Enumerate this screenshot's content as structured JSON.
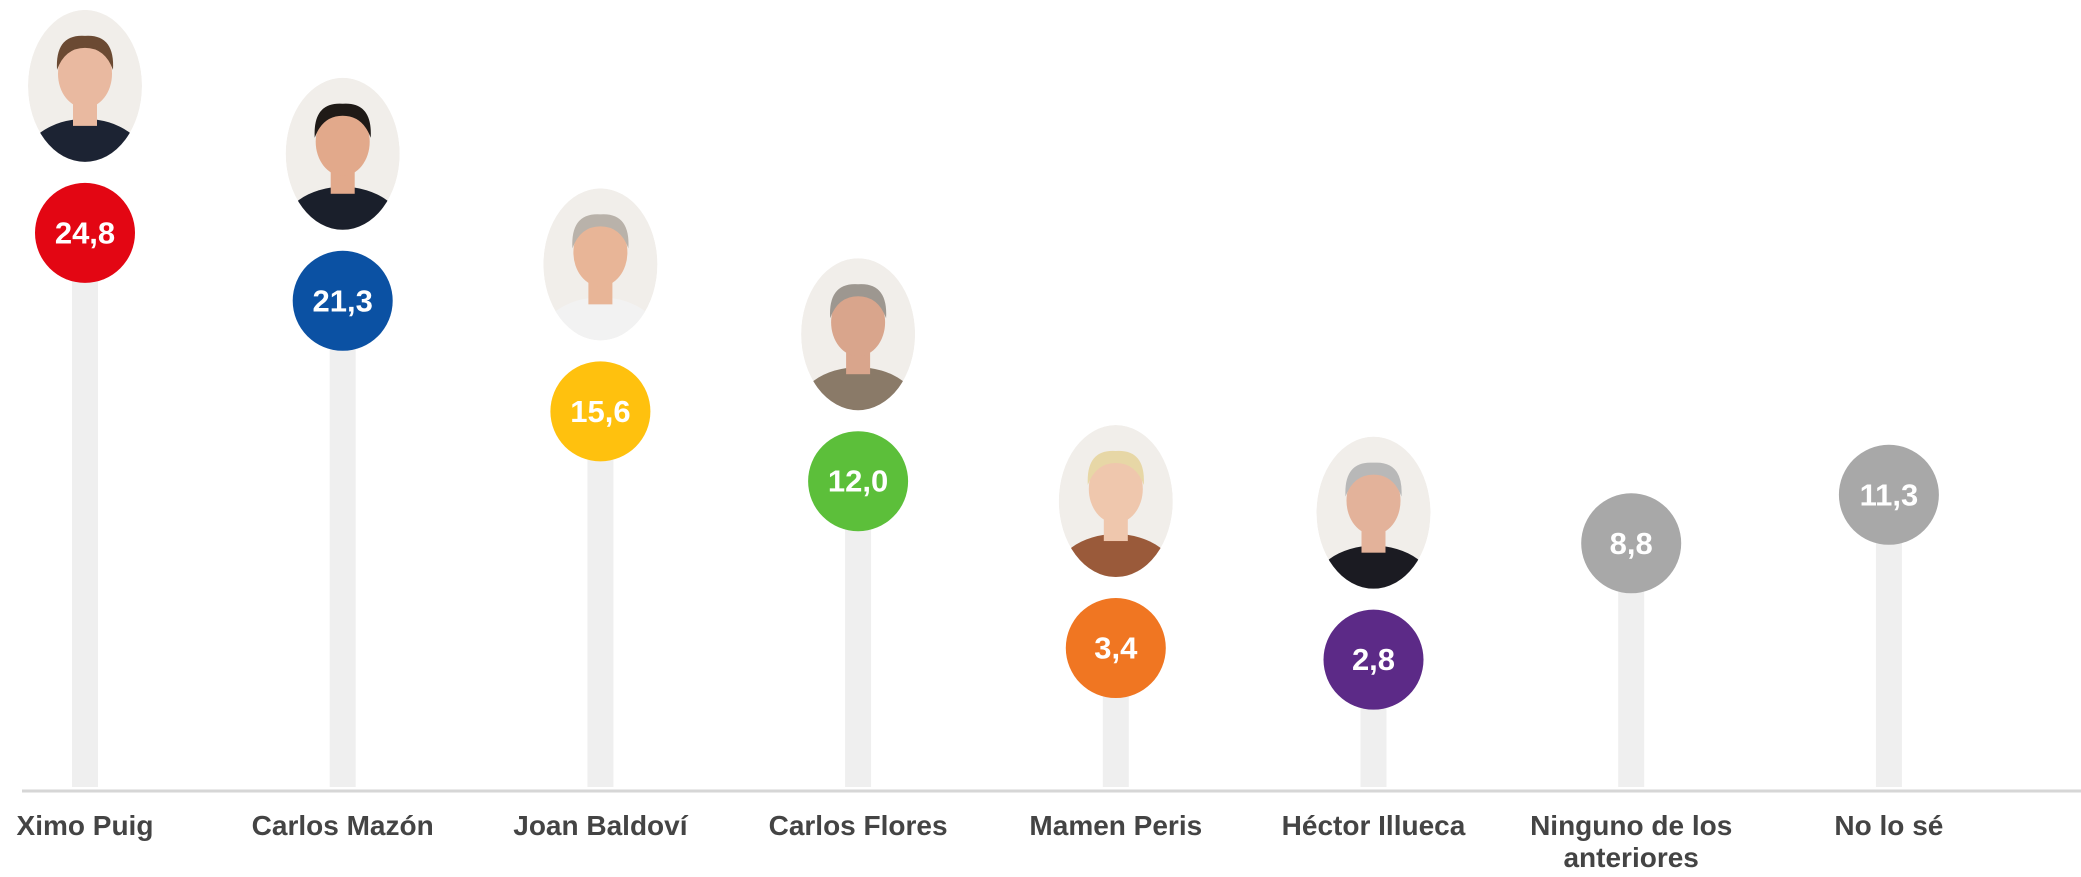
{
  "chart_data": {
    "type": "lollipop",
    "categories": [
      "Ximo Puig",
      "Carlos Mazón",
      "Joan Baldoví",
      "Carlos Flores",
      "Mamen Peris",
      "Héctor Illueca",
      "Ninguno de los anteriores",
      "No lo sé"
    ],
    "values": [
      24.8,
      21.3,
      15.6,
      12.0,
      3.4,
      2.8,
      8.8,
      11.3
    ],
    "value_labels": [
      "24,8",
      "21,3",
      "15,6",
      "12,0",
      "3,4",
      "2,8",
      "8,8",
      "11,3"
    ],
    "colors": [
      "#e30613",
      "#0b51a3",
      "#ffc10e",
      "#5cbf3a",
      "#f07622",
      "#5c2a87",
      "#a8a8a8",
      "#a8a8a8"
    ]
  }
}
